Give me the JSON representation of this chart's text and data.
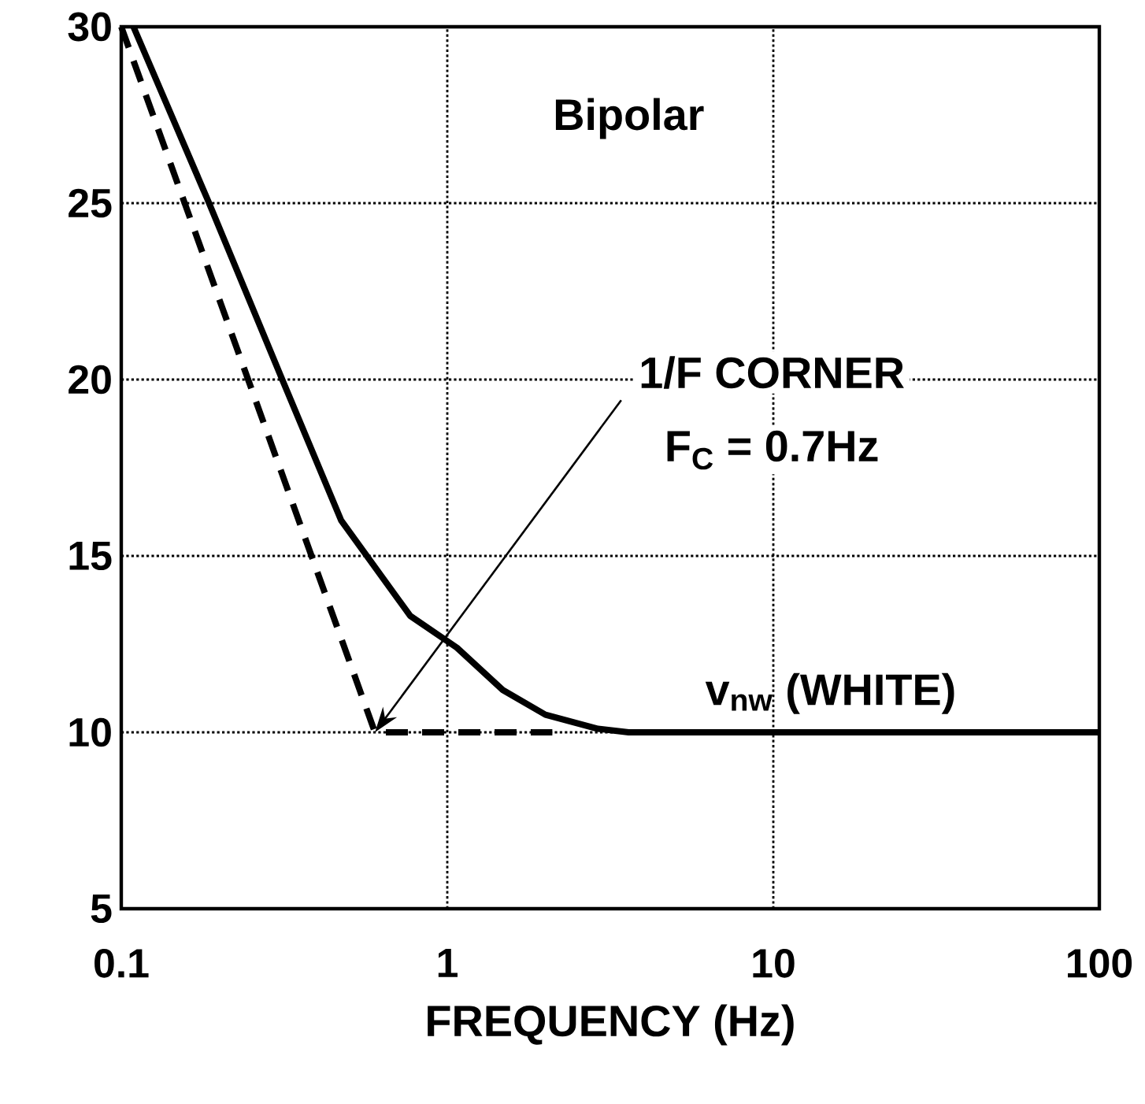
{
  "chart_data": {
    "type": "line",
    "title": "Bipolar",
    "xlabel": "FREQUENCY (Hz)",
    "log": "x",
    "grid": true,
    "marker": "none",
    "xlim": [
      0.1,
      100
    ],
    "xticks": [
      0.1,
      1,
      10,
      100
    ],
    "ylim": [
      5,
      30
    ],
    "yticks": [
      5,
      10,
      15,
      20,
      25,
      30
    ],
    "series": [
      {
        "color": "#000000",
        "line_style": "solid",
        "x": [
          0.109,
          0.184,
          0.315,
          0.473,
          0.77,
          1.07,
          1.48,
          2.0,
          2.9,
          3.6,
          100
        ],
        "values": [
          30,
          25.1,
          19.9,
          16.0,
          13.3,
          12.4,
          11.2,
          10.5,
          10.1,
          10,
          10
        ]
      },
      {
        "color": "#000000",
        "line_style": "dashed",
        "x": [
          0.1,
          0.6,
          2.1
        ],
        "values": [
          30,
          10,
          10
        ]
      }
    ],
    "annotations": [
      "1/F CORNER",
      "F$_{C}$ = 0.7Hz",
      "v$_{nw}$ (WHITE)"
    ]
  }
}
